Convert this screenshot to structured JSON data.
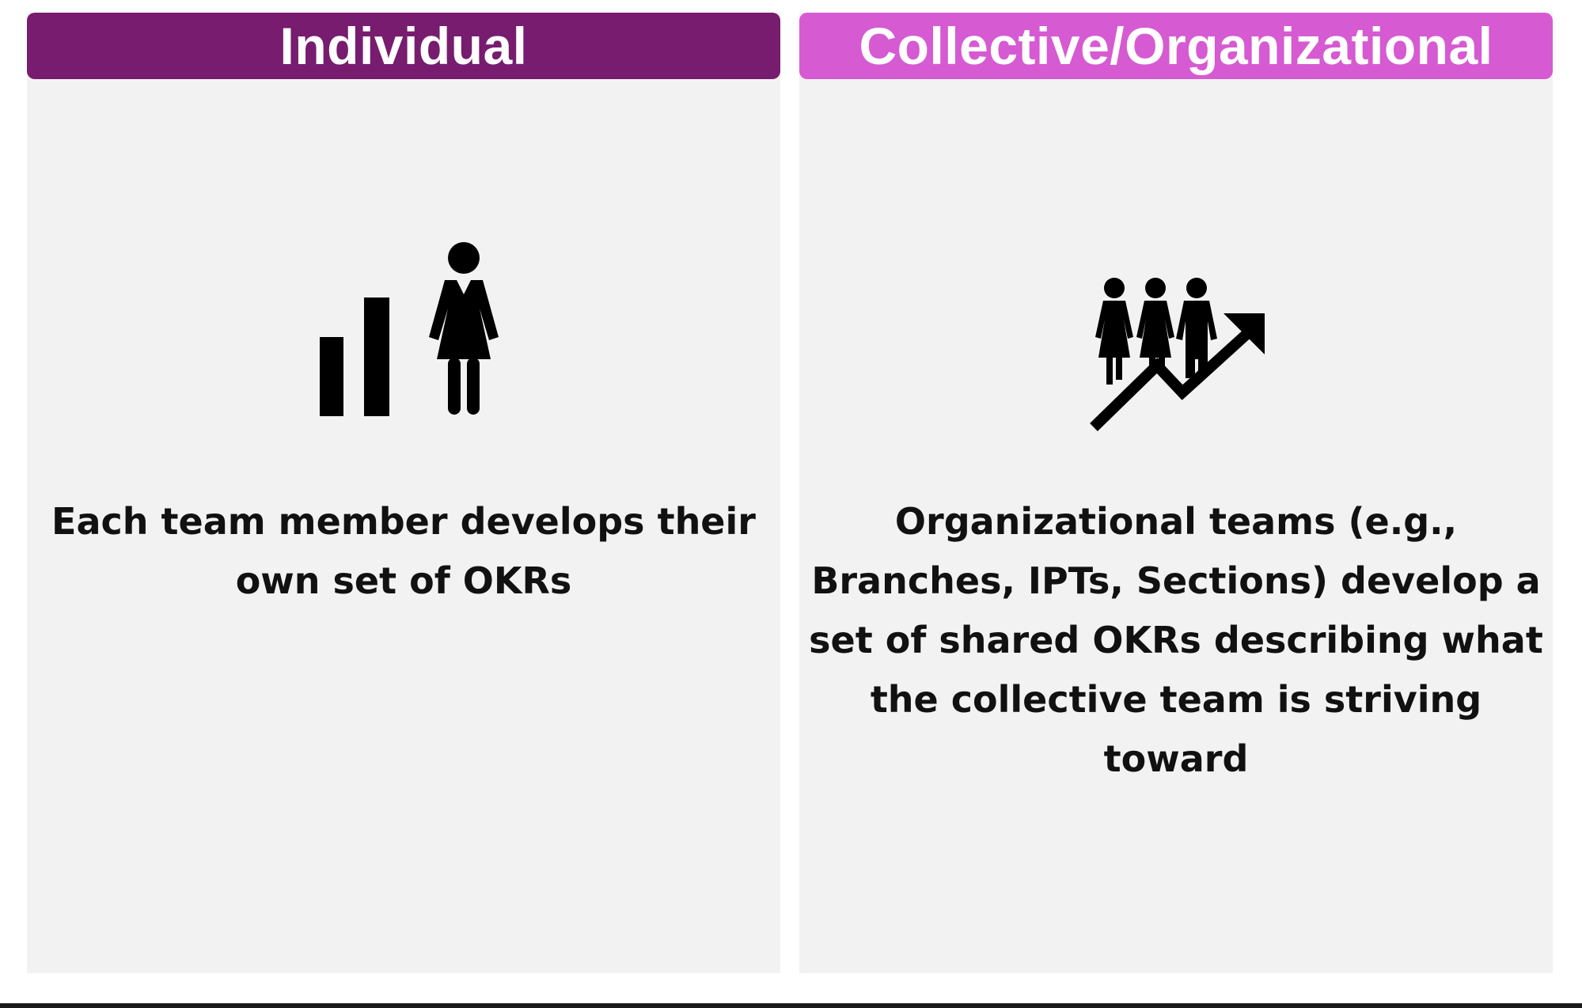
{
  "panels": [
    {
      "title": "Individual",
      "icon": "woman-bar-chart-icon",
      "description": "Each team member develops their own set of OKRs",
      "header_color": "#771c6e"
    },
    {
      "title": "Collective/Organizational",
      "icon": "team-growth-arrow-icon",
      "description": "Organizational teams (e.g., Branches, IPTs, Sections) develop a set of shared OKRs describing what the collective team is striving toward",
      "header_color": "#d65ad2"
    }
  ],
  "panel_background": "#f2f2f2",
  "text_color": "#111111"
}
